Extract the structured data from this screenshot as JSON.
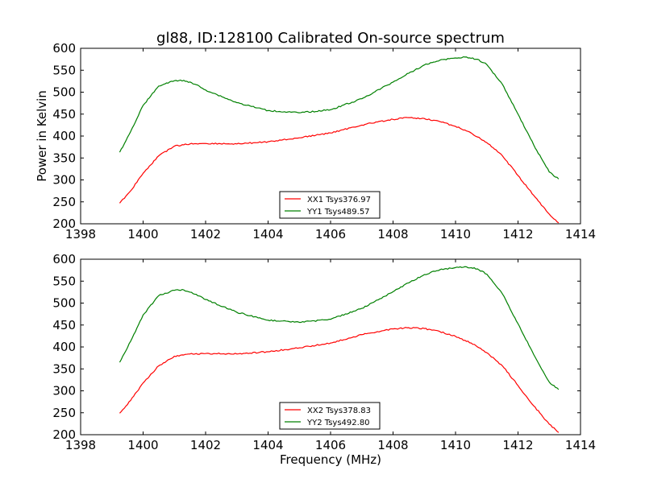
{
  "figure": {
    "title": "gl88, ID:128100 Calibrated On-source spectrum",
    "ylabel": "Power in Kelvin",
    "xlabel": "Frequency (MHz)"
  },
  "chart_data": [
    {
      "type": "line",
      "x_ticks": [
        1398,
        1400,
        1402,
        1404,
        1406,
        1408,
        1410,
        1412,
        1414
      ],
      "y_ticks": [
        200,
        250,
        300,
        350,
        400,
        450,
        500,
        550,
        600
      ],
      "xlim": [
        1398,
        1414
      ],
      "ylim": [
        200,
        600
      ],
      "legend_position": "bottom-center",
      "series": [
        {
          "name": "XX1 Tsys376.97",
          "color": "#ff0000",
          "x": [
            1399.25,
            1399.6,
            1400.0,
            1400.5,
            1401.0,
            1401.5,
            1402.0,
            1403.0,
            1404.0,
            1405.0,
            1406.0,
            1407.0,
            1407.5,
            1408.0,
            1408.5,
            1409.0,
            1409.5,
            1410.0,
            1410.5,
            1411.0,
            1411.5,
            1412.0,
            1412.5,
            1413.0,
            1413.3
          ],
          "y": [
            247,
            275,
            315,
            355,
            377,
            382,
            383,
            382,
            387,
            396,
            407,
            425,
            432,
            438,
            442,
            440,
            433,
            422,
            407,
            385,
            355,
            310,
            265,
            222,
            202
          ]
        },
        {
          "name": "YY1 Tsys489.57",
          "color": "#008000",
          "x": [
            1399.25,
            1399.6,
            1400.0,
            1400.5,
            1401.0,
            1401.3,
            1401.7,
            1402.0,
            1403.0,
            1404.0,
            1405.0,
            1406.0,
            1407.0,
            1408.0,
            1408.5,
            1409.0,
            1409.5,
            1410.0,
            1410.3,
            1410.7,
            1411.0,
            1411.5,
            1412.0,
            1412.5,
            1413.0,
            1413.3
          ],
          "y": [
            363,
            410,
            470,
            514,
            526,
            527,
            517,
            505,
            476,
            458,
            453,
            460,
            485,
            523,
            543,
            562,
            573,
            578,
            580,
            575,
            563,
            518,
            450,
            380,
            318,
            302
          ]
        }
      ]
    },
    {
      "type": "line",
      "x_ticks": [
        1398,
        1400,
        1402,
        1404,
        1406,
        1408,
        1410,
        1412,
        1414
      ],
      "y_ticks": [
        200,
        250,
        300,
        350,
        400,
        450,
        500,
        550,
        600
      ],
      "xlim": [
        1398,
        1414
      ],
      "ylim": [
        200,
        600
      ],
      "legend_position": "bottom-center",
      "series": [
        {
          "name": "XX2 Tsys378.83",
          "color": "#ff0000",
          "x": [
            1399.25,
            1399.6,
            1400.0,
            1400.5,
            1401.0,
            1401.5,
            1402.0,
            1403.0,
            1404.0,
            1405.0,
            1406.0,
            1407.0,
            1407.5,
            1408.0,
            1408.5,
            1409.0,
            1409.5,
            1410.0,
            1410.5,
            1411.0,
            1411.5,
            1412.0,
            1412.5,
            1413.0,
            1413.3
          ],
          "y": [
            249,
            278,
            318,
            357,
            379,
            384,
            385,
            384,
            389,
            398,
            409,
            428,
            435,
            441,
            444,
            442,
            435,
            424,
            409,
            387,
            357,
            312,
            266,
            224,
            205
          ]
        },
        {
          "name": "YY2 Tsys492.80",
          "color": "#008000",
          "x": [
            1399.25,
            1399.6,
            1400.0,
            1400.5,
            1401.0,
            1401.3,
            1401.7,
            1402.0,
            1403.0,
            1404.0,
            1405.0,
            1406.0,
            1407.0,
            1408.0,
            1408.5,
            1409.0,
            1409.5,
            1410.0,
            1410.3,
            1410.7,
            1411.0,
            1411.5,
            1412.0,
            1412.5,
            1413.0,
            1413.3
          ],
          "y": [
            365,
            413,
            473,
            517,
            529,
            530,
            520,
            508,
            479,
            461,
            456,
            463,
            488,
            526,
            546,
            565,
            576,
            581,
            583,
            578,
            566,
            521,
            453,
            383,
            320,
            303
          ]
        }
      ]
    }
  ]
}
